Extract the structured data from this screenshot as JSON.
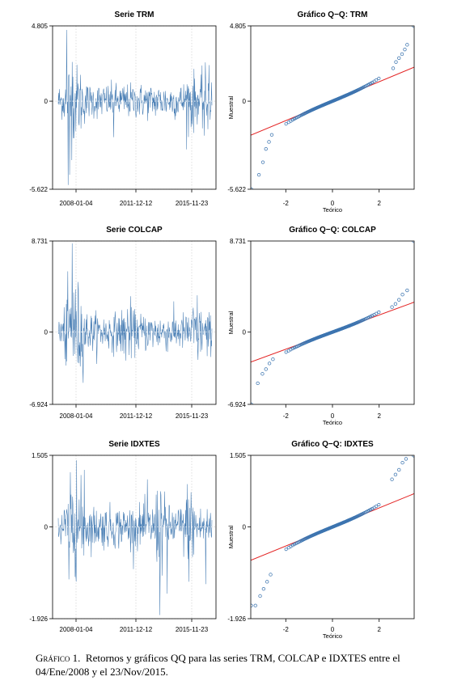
{
  "caption": {
    "label": "Gráfico 1.",
    "text": "Retornos y gráficos QQ para las series TRM, COLCAP e IDXTES entre el 04/Ene/2008 y el 23/Nov/2015."
  },
  "colors": {
    "series": "#4a7fb5",
    "points": "#3d75b0",
    "reference_line": "#e32222",
    "grid": "#c8c8c8"
  },
  "chart_data": [
    {
      "type": "line",
      "title": "Serie TRM",
      "x_ticks": [
        "2008-01-04",
        "2011-12-12",
        "2015-11-23"
      ],
      "y_ticks": [
        "4.805",
        "0",
        "-5.622"
      ],
      "ylim": [
        -5.622,
        4.805
      ],
      "grid": true,
      "description_values": {
        "min": -5.622,
        "max": 4.805
      }
    },
    {
      "type": "scatter",
      "title": "Gráfico Q−Q: TRM",
      "xlabel": "Teórico",
      "ylabel": "Muestral",
      "x_ticks": [
        "-2",
        "0",
        "2"
      ],
      "y_ticks": [
        "4.805",
        "0",
        "-5.622"
      ],
      "xlim": [
        -3.5,
        3.5
      ],
      "ylim": [
        -5.622,
        4.805
      ],
      "reference_line": {
        "intercept": 0.0,
        "slope": 0.62
      },
      "tail_points": {
        "low": [
          [
            -3.48,
            -5.62
          ],
          [
            -3.15,
            -4.7
          ],
          [
            -2.98,
            -3.9
          ],
          [
            -2.85,
            -3.05
          ],
          [
            -2.72,
            -2.6
          ],
          [
            -2.6,
            -2.15
          ]
        ],
        "high": [
          [
            2.6,
            2.1
          ],
          [
            2.72,
            2.5
          ],
          [
            2.85,
            2.75
          ],
          [
            2.98,
            3.0
          ],
          [
            3.1,
            3.3
          ],
          [
            3.2,
            3.6
          ],
          [
            3.48,
            4.8
          ]
        ]
      }
    },
    {
      "type": "line",
      "title": "Serie COLCAP",
      "x_ticks": [
        "2008-01-04",
        "2011-12-12",
        "2015-11-23"
      ],
      "y_ticks": [
        "8.731",
        "0",
        "-6.924"
      ],
      "ylim": [
        -6.924,
        8.731
      ],
      "grid": true,
      "description_values": {
        "min": -6.924,
        "max": 8.731
      }
    },
    {
      "type": "scatter",
      "title": "Gráfico Q−Q: COLCAP",
      "xlabel": "Teórico",
      "ylabel": "Muestral",
      "x_ticks": [
        "-2",
        "0",
        "2"
      ],
      "y_ticks": [
        "8.731",
        "0",
        "-6.924"
      ],
      "xlim": [
        -3.5,
        3.5
      ],
      "ylim": [
        -6.924,
        8.731
      ],
      "reference_line": {
        "intercept": 0.0,
        "slope": 0.82
      },
      "tail_points": {
        "low": [
          [
            -3.48,
            -6.92
          ],
          [
            -3.2,
            -4.9
          ],
          [
            -3.0,
            -4.0
          ],
          [
            -2.85,
            -3.55
          ],
          [
            -2.7,
            -3.0
          ],
          [
            -2.55,
            -2.6
          ]
        ],
        "high": [
          [
            2.55,
            2.4
          ],
          [
            2.7,
            2.7
          ],
          [
            2.85,
            3.1
          ],
          [
            3.0,
            3.6
          ],
          [
            3.2,
            4.0
          ],
          [
            3.48,
            8.73
          ]
        ]
      }
    },
    {
      "type": "line",
      "title": "Serie IDXTES",
      "x_ticks": [
        "2008-01-04",
        "2011-12-12",
        "2015-11-23"
      ],
      "y_ticks": [
        "1.505",
        "0",
        "-1.926"
      ],
      "ylim": [
        -1.926,
        1.505
      ],
      "grid": true,
      "description_values": {
        "min": -1.926,
        "max": 1.505
      }
    },
    {
      "type": "scatter",
      "title": "Gráfico Q−Q: IDXTES",
      "xlabel": "Teórico",
      "ylabel": "Muestral",
      "x_ticks": [
        "-2",
        "0",
        "2"
      ],
      "y_ticks": [
        "1.505",
        "0",
        "-1.926"
      ],
      "xlim": [
        -3.5,
        3.5
      ],
      "ylim": [
        -1.926,
        1.505
      ],
      "reference_line": {
        "intercept": 0.0,
        "slope": 0.2
      },
      "tail_points": {
        "low": [
          [
            -3.48,
            -1.65
          ],
          [
            -3.3,
            -1.65
          ],
          [
            -3.1,
            -1.45
          ],
          [
            -2.95,
            -1.3
          ],
          [
            -2.8,
            -1.15
          ],
          [
            -2.65,
            -1.0
          ]
        ],
        "high": [
          [
            2.55,
            1.0
          ],
          [
            2.7,
            1.1
          ],
          [
            2.85,
            1.2
          ],
          [
            3.0,
            1.35
          ],
          [
            3.15,
            1.43
          ],
          [
            3.48,
            1.5
          ]
        ]
      }
    }
  ]
}
